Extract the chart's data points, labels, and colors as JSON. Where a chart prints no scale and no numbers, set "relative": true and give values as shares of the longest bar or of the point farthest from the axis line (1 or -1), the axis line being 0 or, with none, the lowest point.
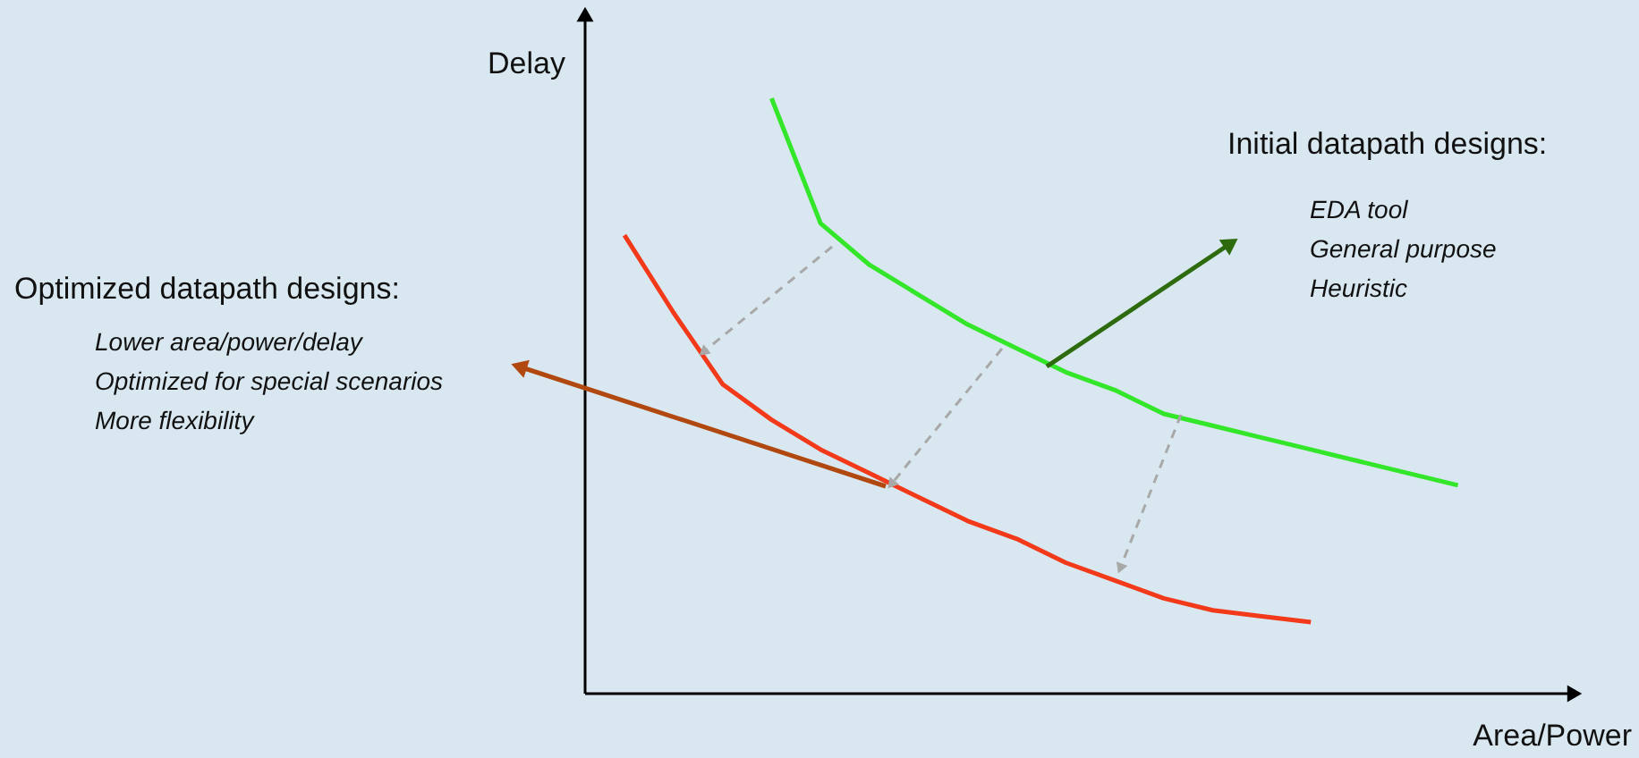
{
  "chart_data": {
    "type": "line",
    "relative": true,
    "xlabel": "Area/Power",
    "ylabel": "Delay",
    "categories": [
      null,
      null,
      null,
      null,
      null,
      null,
      null,
      null,
      null,
      null,
      null,
      null,
      null,
      null,
      null,
      null,
      null,
      null
    ],
    "series": [
      {
        "color": "#33e62a",
        "values": [
          null,
          null,
          null,
          1.0,
          0.79,
          0.72,
          0.67,
          0.62,
          0.58,
          0.54,
          0.51,
          0.47,
          0.45,
          0.43,
          0.41,
          0.39,
          0.37,
          0.35
        ]
      },
      {
        "color": "#f23a1a",
        "values": [
          0.77,
          0.64,
          0.52,
          0.46,
          0.41,
          0.37,
          0.33,
          0.29,
          0.26,
          0.22,
          0.19,
          0.16,
          0.14,
          0.13,
          0.12,
          null,
          null,
          null
        ]
      }
    ],
    "annotations": [
      "Initial datapath designs:",
      "EDA tool",
      "General purpose",
      "Heuristic",
      "Optimized datapath designs:",
      "Lower area/power/delay",
      "Optimized for special scenarios",
      "More flexibility"
    ]
  }
}
